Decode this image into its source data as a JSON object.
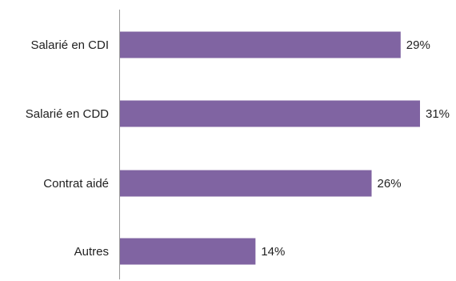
{
  "chart_data": {
    "type": "bar",
    "orientation": "horizontal",
    "categories": [
      "Salarié en CDI",
      "Salarié en CDD",
      "Contrat aidé",
      "Autres"
    ],
    "values": [
      29,
      31,
      26,
      14
    ],
    "value_labels": [
      "29%",
      "31%",
      "26%",
      "14%"
    ],
    "unit": "%",
    "title": "",
    "xlabel": "",
    "ylabel": "",
    "xlim": [
      0,
      31
    ],
    "grid": false,
    "legend": "none",
    "bar_color": "#8064a2"
  }
}
